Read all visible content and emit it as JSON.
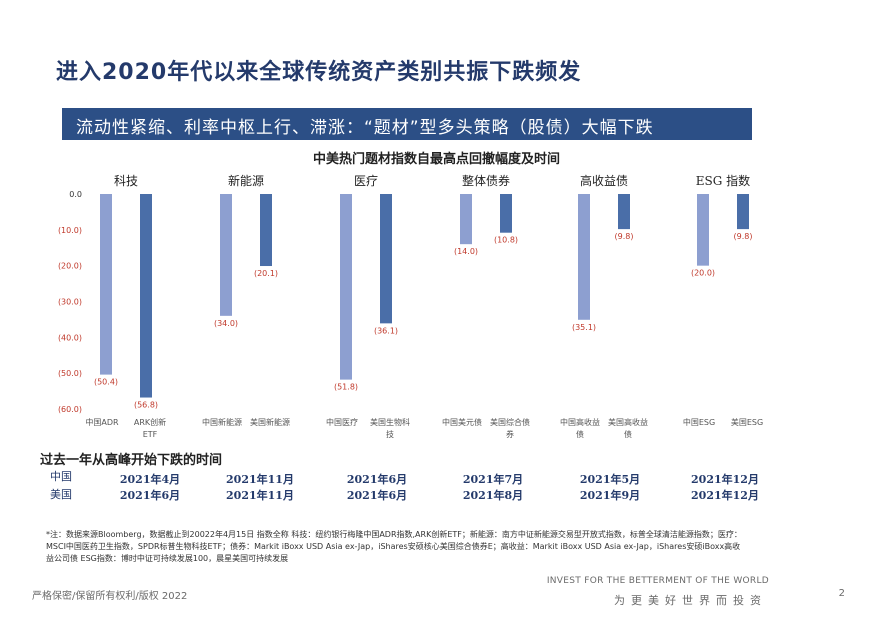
{
  "title": "进入2020年代以来全球传统资产类别共振下跌频发",
  "banner": "流动性紧缩、利率中枢上行、滞涨：“题材”型多头策略（股债）大幅下跌",
  "colors": {
    "cn_bar": "#8d9fd0",
    "us_bar": "#4a6ea8",
    "label_red": "#c0392b",
    "banner_bg": "#2c4f86"
  },
  "chart_data": {
    "type": "bar",
    "title": "中美热门题材指数自最高点回撤幅度及时间",
    "ylim": [
      -60,
      0
    ],
    "yticks": [
      "0.0",
      "(10.0)",
      "(20.0)",
      "(30.0)",
      "(40.0)",
      "(50.0)",
      "(60.0)"
    ],
    "tick_values": [
      0,
      -10,
      -20,
      -30,
      -40,
      -50,
      -60
    ],
    "groups": [
      {
        "name": "科技",
        "bars": [
          {
            "series": "中国",
            "label": "中国ADR",
            "value": -50.4,
            "display": "(50.4)"
          },
          {
            "series": "美国",
            "label": "ARK创新ETF",
            "value": -56.8,
            "display": "(56.8)"
          }
        ]
      },
      {
        "name": "新能源",
        "bars": [
          {
            "series": "中国",
            "label": "中国新能源",
            "value": -34.0,
            "display": "(34.0)"
          },
          {
            "series": "美国",
            "label": "美国新能源",
            "value": -20.1,
            "display": "(20.1)"
          }
        ]
      },
      {
        "name": "医疗",
        "bars": [
          {
            "series": "中国",
            "label": "中国医疗",
            "value": -51.8,
            "display": "(51.8)"
          },
          {
            "series": "美国",
            "label": "美国生物科技",
            "value": -36.1,
            "display": "(36.1)"
          }
        ]
      },
      {
        "name": "整体债券",
        "bars": [
          {
            "series": "中国",
            "label": "中国美元债",
            "value": -14.0,
            "display": "(14.0)"
          },
          {
            "series": "美国",
            "label": "美国综合债券",
            "value": -10.8,
            "display": "(10.8)"
          }
        ]
      },
      {
        "name": "高收益债",
        "bars": [
          {
            "series": "中国",
            "label": "中国高收益债",
            "value": -35.1,
            "display": "(35.1)"
          },
          {
            "series": "美国",
            "label": "美国高收益债",
            "value": -9.8,
            "display": "(9.8)"
          }
        ]
      },
      {
        "name": "ESG 指数",
        "bars": [
          {
            "series": "中国",
            "label": "中国ESG",
            "value": -20.0,
            "display": "(20.0)"
          },
          {
            "series": "美国",
            "label": "美国ESG",
            "value": -9.8,
            "display": "(9.8)"
          }
        ]
      }
    ]
  },
  "peak_time": {
    "title": "过去一年从高峰开始下跌的时间",
    "row_labels": [
      "中国",
      "美国"
    ],
    "china": [
      "2021年4月",
      "2021年11月",
      "2021年6月",
      "2021年7月",
      "2021年5月",
      "2021年12月"
    ],
    "us": [
      "2021年6月",
      "2021年11月",
      "2021年6月",
      "2021年8月",
      "2021年9月",
      "2021年12月"
    ]
  },
  "footnote": "*注：数据来源Bloomberg，数据截止到20022年4月15日 指数全称 科技：纽约银行梅隆中国ADR指数,ARK创新ETF；新能源：南方中证新能源交易型开放式指数，标普全球清洁能源指数；医疗：MSCI中国医药卫生指数，SPDR标普生物科技ETF；债券：Markit iBoxx USD Asia ex-Jap，iShares安硕核心美国综合债券E；高收益：Markit iBoxx USD Asia ex-Jap，iShares安硕iBoxx高收益公司债 ESG指数：博时中证可持续发展100，晨星美国可持续发展",
  "footer": {
    "left": "严格保密/保留所有权利/版权 2022",
    "tagline_en": "INVEST FOR THE BETTERMENT OF THE WORLD",
    "tagline_cn": "为更美好世界而投资",
    "page": "2"
  }
}
